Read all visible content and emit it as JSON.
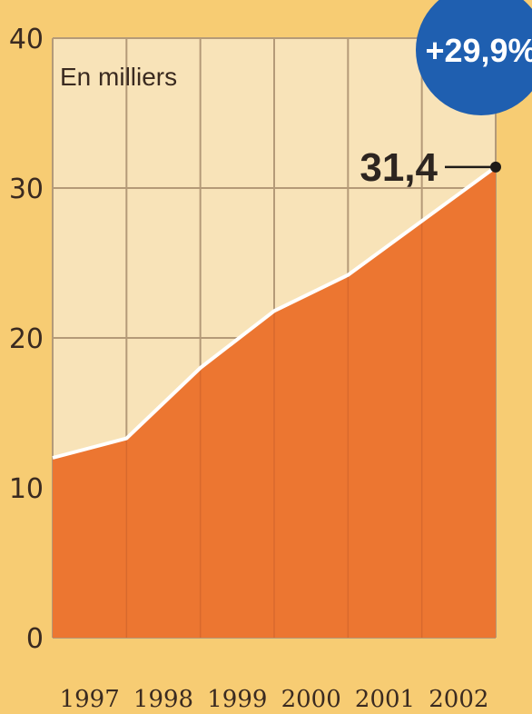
{
  "chart_data": {
    "type": "area",
    "unit_label": "En milliers",
    "x": [
      "1997",
      "1998",
      "1999",
      "2000",
      "2001",
      "2002"
    ],
    "y_ticks": [
      "0",
      "10",
      "20",
      "30",
      "40"
    ],
    "ylim": [
      0,
      40
    ],
    "series": [
      {
        "values": [
          12.0,
          13.3,
          18.0,
          21.8,
          24.2,
          31.4
        ]
      }
    ],
    "end_label": "31,4",
    "change_badge": "+29,9%",
    "grid": true,
    "colors": {
      "area": "#ec7631",
      "plot_bg": "#f8e3b8",
      "grid": "#b49a78",
      "line": "#ffffff",
      "badge": "#1f5fb0",
      "page_bg": "#f7cc73"
    }
  }
}
